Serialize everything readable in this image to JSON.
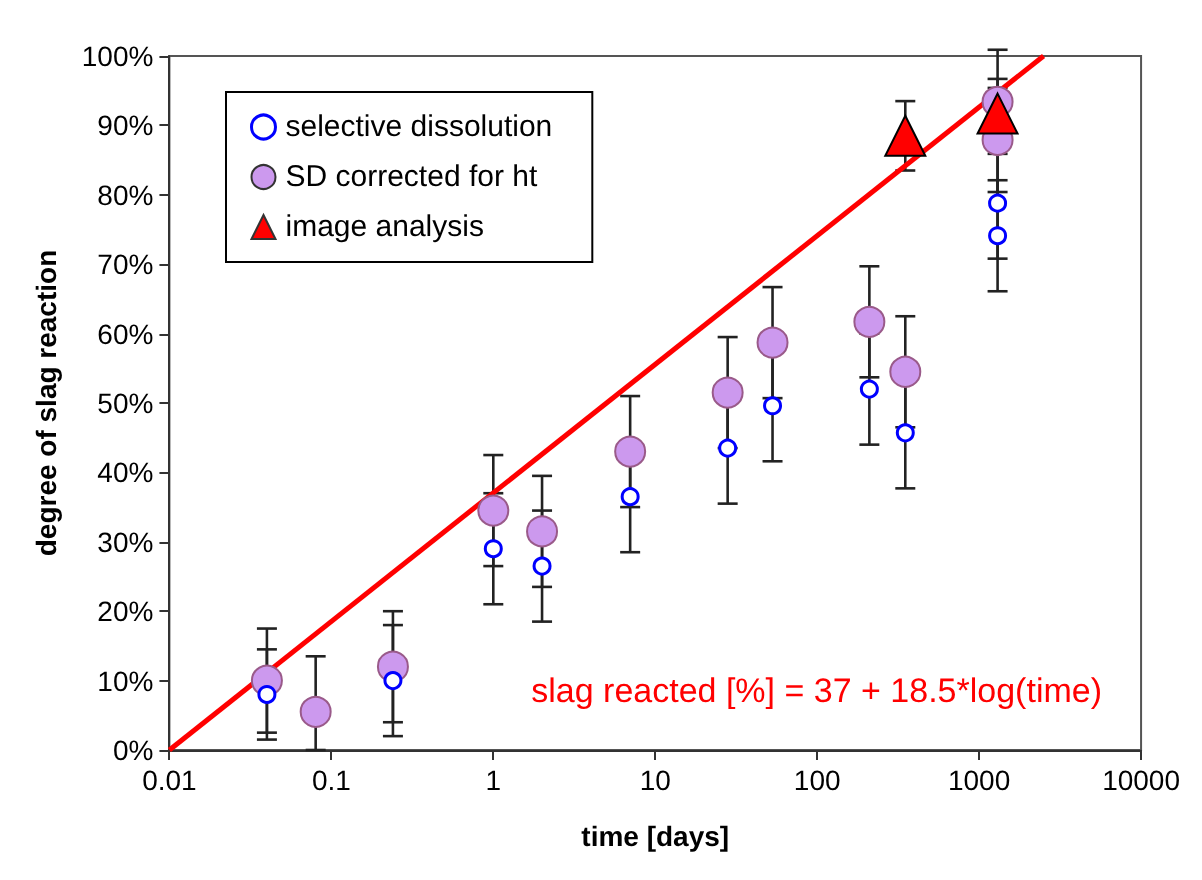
{
  "chart_data": {
    "type": "scatter",
    "xlabel": "time [days]",
    "ylabel": "degree of slag reaction",
    "log": "x",
    "grid": false,
    "legend": "top left",
    "xlim": [
      0.01,
      10000
    ],
    "xticks": [
      0.01,
      0.1,
      1,
      10,
      100,
      1000,
      10000
    ],
    "ylim": [
      0,
      100
    ],
    "yticks": [
      {
        "value": 0,
        "label": "0%"
      },
      {
        "value": 10,
        "label": "10%"
      },
      {
        "value": 20,
        "label": "20%"
      },
      {
        "value": 30,
        "label": "30%"
      },
      {
        "value": 40,
        "label": "40%"
      },
      {
        "value": 50,
        "label": "50%"
      },
      {
        "value": 60,
        "label": "60%"
      },
      {
        "value": 70,
        "label": "70%"
      },
      {
        "value": 80,
        "label": "80%"
      },
      {
        "value": 90,
        "label": "90%"
      },
      {
        "value": 100,
        "label": "100%"
      }
    ],
    "series": [
      {
        "name": "selective dissolution",
        "marker": "circle",
        "color": "#0000ff",
        "x": [
          0.04,
          0.08,
          0.24,
          1,
          2,
          7,
          28,
          53,
          210,
          350,
          1300,
          1300
        ],
        "values": [
          8,
          null,
          10,
          29,
          26.5,
          36.5,
          43.5,
          49.6,
          52,
          45.7,
          78.8,
          74.1
        ],
        "errors": [
          6.5,
          null,
          8,
          8,
          8,
          8,
          8,
          8,
          8,
          8,
          8,
          8
        ]
      },
      {
        "name": "SD corrected for ht",
        "marker": "circle",
        "color": "#cc99ee",
        "x": [
          0.04,
          0.08,
          0.24,
          1,
          2,
          7,
          28,
          53,
          210,
          350,
          1300,
          1300
        ],
        "values": [
          10,
          5.5,
          12,
          34.5,
          31.5,
          43,
          51.5,
          58.7,
          61.7,
          54.5,
          93.4,
          87.9
        ],
        "errors": [
          7.5,
          [
            0,
            13.5
          ],
          8,
          8,
          8,
          8,
          8,
          8,
          8,
          8,
          7.5,
          7.5
        ]
      },
      {
        "name": "image analysis",
        "marker": "triangle",
        "color": "#ff0000",
        "x": [
          350,
          1300
        ],
        "values": [
          88.5,
          91.7
        ],
        "errors": [
          5,
          5
        ]
      },
      {
        "type": "line",
        "marker": "none",
        "color": "#ff0000",
        "x": [
          0.01,
          2500
        ],
        "values": [
          0,
          100
        ]
      }
    ],
    "annotations": [
      "slag reacted [%] = 37 + 18.5*log(time)"
    ]
  }
}
